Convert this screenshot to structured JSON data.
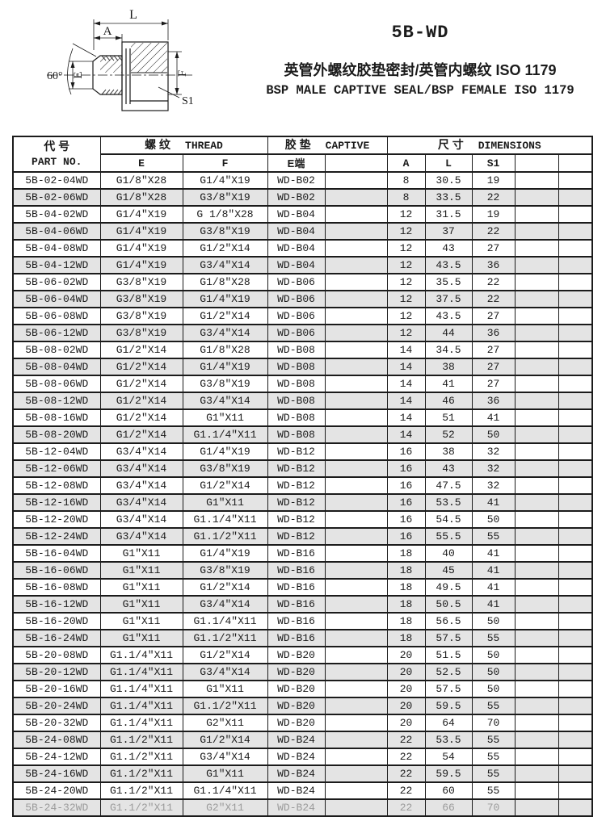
{
  "header": {
    "model": "5B-WD",
    "title_cn": "英管外螺纹胶垫密封/英管内螺纹 ISO 1179",
    "title_en": "BSP MALE CAPTIVE SEAL/BSP FEMALE ISO 1179"
  },
  "diagram": {
    "labels": {
      "overall_length": "L",
      "thread_length": "A",
      "male_thread": "E",
      "female_thread": "F",
      "hex_size": "S1",
      "cone_angle": "60°"
    }
  },
  "table": {
    "head": {
      "part_cn": "代  号",
      "part_en": "PART NO.",
      "thread_cn": "螺 纹",
      "thread_en": "THREAD",
      "captive_cn": "胶 垫",
      "captive_en": "CAPTIVE",
      "dims_cn": "尺 寸",
      "dims_en": "DIMENSIONS",
      "col_e": "E",
      "col_f": "F",
      "col_e_end": "E端",
      "col_a": "A",
      "col_l": "L",
      "col_s1": "S1"
    },
    "faded_last_row": true,
    "rows": [
      {
        "part": "5B-02-04WD",
        "e": "G1/8″X28",
        "f": "G1/4″X19",
        "captive": "WD-B02",
        "a": "8",
        "l": "30.5",
        "s1": "19"
      },
      {
        "part": "5B-02-06WD",
        "e": "G1/8″X28",
        "f": "G3/8″X19",
        "captive": "WD-B02",
        "a": "8",
        "l": "33.5",
        "s1": "22"
      },
      {
        "part": "5B-04-02WD",
        "e": "G1/4″X19",
        "f": "G 1/8″X28",
        "captive": "WD-B04",
        "a": "12",
        "l": "31.5",
        "s1": "19"
      },
      {
        "part": "5B-04-06WD",
        "e": "G1/4″X19",
        "f": "G3/8″X19",
        "captive": "WD-B04",
        "a": "12",
        "l": "37",
        "s1": "22"
      },
      {
        "part": "5B-04-08WD",
        "e": "G1/4″X19",
        "f": "G1/2″X14",
        "captive": "WD-B04",
        "a": "12",
        "l": "43",
        "s1": "27"
      },
      {
        "part": "5B-04-12WD",
        "e": "G1/4″X19",
        "f": "G3/4″X14",
        "captive": "WD-B04",
        "a": "12",
        "l": "43.5",
        "s1": "36"
      },
      {
        "part": "5B-06-02WD",
        "e": "G3/8″X19",
        "f": "G1/8″X28",
        "captive": "WD-B06",
        "a": "12",
        "l": "35.5",
        "s1": "22"
      },
      {
        "part": "5B-06-04WD",
        "e": "G3/8″X19",
        "f": "G1/4″X19",
        "captive": "WD-B06",
        "a": "12",
        "l": "37.5",
        "s1": "22"
      },
      {
        "part": "5B-06-08WD",
        "e": "G3/8″X19",
        "f": "G1/2″X14",
        "captive": "WD-B06",
        "a": "12",
        "l": "43.5",
        "s1": "27"
      },
      {
        "part": "5B-06-12WD",
        "e": "G3/8″X19",
        "f": "G3/4″X14",
        "captive": "WD-B06",
        "a": "12",
        "l": "44",
        "s1": "36"
      },
      {
        "part": "5B-08-02WD",
        "e": "G1/2″X14",
        "f": "G1/8″X28",
        "captive": "WD-B08",
        "a": "14",
        "l": "34.5",
        "s1": "27"
      },
      {
        "part": "5B-08-04WD",
        "e": "G1/2″X14",
        "f": "G1/4″X19",
        "captive": "WD-B08",
        "a": "14",
        "l": "38",
        "s1": "27"
      },
      {
        "part": "5B-08-06WD",
        "e": "G1/2″X14",
        "f": "G3/8″X19",
        "captive": "WD-B08",
        "a": "14",
        "l": "41",
        "s1": "27"
      },
      {
        "part": "5B-08-12WD",
        "e": "G1/2″X14",
        "f": "G3/4″X14",
        "captive": "WD-B08",
        "a": "14",
        "l": "46",
        "s1": "36"
      },
      {
        "part": "5B-08-16WD",
        "e": "G1/2″X14",
        "f": "G1″X11",
        "captive": "WD-B08",
        "a": "14",
        "l": "51",
        "s1": "41"
      },
      {
        "part": "5B-08-20WD",
        "e": "G1/2″X14",
        "f": "G1.1/4″X11",
        "captive": "WD-B08",
        "a": "14",
        "l": "52",
        "s1": "50"
      },
      {
        "part": "5B-12-04WD",
        "e": "G3/4″X14",
        "f": "G1/4″X19",
        "captive": "WD-B12",
        "a": "16",
        "l": "38",
        "s1": "32"
      },
      {
        "part": "5B-12-06WD",
        "e": "G3/4″X14",
        "f": "G3/8″X19",
        "captive": "WD-B12",
        "a": "16",
        "l": "43",
        "s1": "32"
      },
      {
        "part": "5B-12-08WD",
        "e": "G3/4″X14",
        "f": "G1/2″X14",
        "captive": "WD-B12",
        "a": "16",
        "l": "47.5",
        "s1": "32"
      },
      {
        "part": "5B-12-16WD",
        "e": "G3/4″X14",
        "f": "G1″X11",
        "captive": "WD-B12",
        "a": "16",
        "l": "53.5",
        "s1": "41"
      },
      {
        "part": "5B-12-20WD",
        "e": "G3/4″X14",
        "f": "G1.1/4″X11",
        "captive": "WD-B12",
        "a": "16",
        "l": "54.5",
        "s1": "50"
      },
      {
        "part": "5B-12-24WD",
        "e": "G3/4″X14",
        "f": "G1.1/2″X11",
        "captive": "WD-B12",
        "a": "16",
        "l": "55.5",
        "s1": "55"
      },
      {
        "part": "5B-16-04WD",
        "e": "G1″X11",
        "f": "G1/4″X19",
        "captive": "WD-B16",
        "a": "18",
        "l": "40",
        "s1": "41"
      },
      {
        "part": "5B-16-06WD",
        "e": "G1″X11",
        "f": "G3/8″X19",
        "captive": "WD-B16",
        "a": "18",
        "l": "45",
        "s1": "41"
      },
      {
        "part": "5B-16-08WD",
        "e": "G1″X11",
        "f": "G1/2″X14",
        "captive": "WD-B16",
        "a": "18",
        "l": "49.5",
        "s1": "41"
      },
      {
        "part": "5B-16-12WD",
        "e": "G1″X11",
        "f": "G3/4″X14",
        "captive": "WD-B16",
        "a": "18",
        "l": "50.5",
        "s1": "41"
      },
      {
        "part": "5B-16-20WD",
        "e": "G1″X11",
        "f": "G1.1/4″X11",
        "captive": "WD-B16",
        "a": "18",
        "l": "56.5",
        "s1": "50"
      },
      {
        "part": "5B-16-24WD",
        "e": "G1″X11",
        "f": "G1.1/2″X11",
        "captive": "WD-B16",
        "a": "18",
        "l": "57.5",
        "s1": "55"
      },
      {
        "part": "5B-20-08WD",
        "e": "G1.1/4″X11",
        "f": "G1/2″X14",
        "captive": "WD-B20",
        "a": "20",
        "l": "51.5",
        "s1": "50"
      },
      {
        "part": "5B-20-12WD",
        "e": "G1.1/4″X11",
        "f": "G3/4″X14",
        "captive": "WD-B20",
        "a": "20",
        "l": "52.5",
        "s1": "50"
      },
      {
        "part": "5B-20-16WD",
        "e": "G1.1/4″X11",
        "f": "G1″X11",
        "captive": "WD-B20",
        "a": "20",
        "l": "57.5",
        "s1": "50"
      },
      {
        "part": "5B-20-24WD",
        "e": "G1.1/4″X11",
        "f": "G1.1/2″X11",
        "captive": "WD-B20",
        "a": "20",
        "l": "59.5",
        "s1": "55"
      },
      {
        "part": "5B-20-32WD",
        "e": "G1.1/4″X11",
        "f": "G2″X11",
        "captive": "WD-B20",
        "a": "20",
        "l": "64",
        "s1": "70"
      },
      {
        "part": "5B-24-08WD",
        "e": "G1.1/2″X11",
        "f": "G1/2″X14",
        "captive": "WD-B24",
        "a": "22",
        "l": "53.5",
        "s1": "55"
      },
      {
        "part": "5B-24-12WD",
        "e": "G1.1/2″X11",
        "f": "G3/4″X14",
        "captive": "WD-B24",
        "a": "22",
        "l": "54",
        "s1": "55"
      },
      {
        "part": "5B-24-16WD",
        "e": "G1.1/2″X11",
        "f": "G1″X11",
        "captive": "WD-B24",
        "a": "22",
        "l": "59.5",
        "s1": "55"
      },
      {
        "part": "5B-24-20WD",
        "e": "G1.1/2″X11",
        "f": "G1.1/4″X11",
        "captive": "WD-B24",
        "a": "22",
        "l": "60",
        "s1": "55"
      },
      {
        "part": "5B-24-32WD",
        "e": "G1.1/2″X11",
        "f": "G2″X11",
        "captive": "WD-B24",
        "a": "22",
        "l": "66",
        "s1": "70"
      }
    ]
  }
}
